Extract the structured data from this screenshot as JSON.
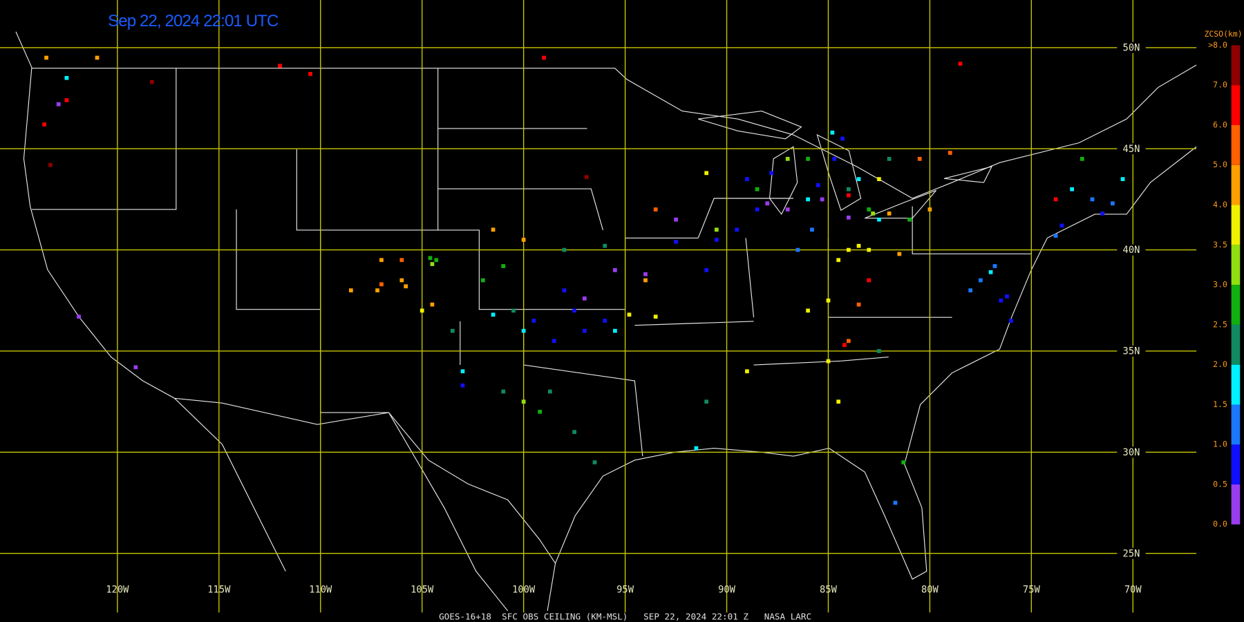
{
  "header": {
    "timestamp": "Sep 22, 2024 22:01 UTC"
  },
  "map": {
    "lon_lines": [
      {
        "value": -120,
        "label": "120W"
      },
      {
        "value": -115,
        "label": "115W"
      },
      {
        "value": -110,
        "label": "110W"
      },
      {
        "value": -105,
        "label": "105W"
      },
      {
        "value": -100,
        "label": "100W"
      },
      {
        "value": -95,
        "label": "95W"
      },
      {
        "value": -90,
        "label": "90W"
      },
      {
        "value": -85,
        "label": "85W"
      },
      {
        "value": -80,
        "label": "80W"
      },
      {
        "value": -75,
        "label": "75W"
      },
      {
        "value": -70,
        "label": "70W"
      }
    ],
    "lat_lines": [
      {
        "value": 50,
        "label": "50N"
      },
      {
        "value": 45,
        "label": "45N"
      },
      {
        "value": 40,
        "label": "40N"
      },
      {
        "value": 35,
        "label": "35N"
      },
      {
        "value": 30,
        "label": "30N"
      },
      {
        "value": 25,
        "label": "25N"
      }
    ],
    "stations": [
      [
        -122.9,
        47.2,
        0.25
      ],
      [
        -92.5,
        41.5,
        0.25
      ],
      [
        -88,
        42.3,
        0.25
      ],
      [
        -87,
        42,
        0.25
      ],
      [
        -95.5,
        39,
        0.25
      ],
      [
        -94,
        38.8,
        0.25
      ],
      [
        -85.3,
        42.5,
        0.25
      ],
      [
        -84,
        41.6,
        0.25
      ],
      [
        -121.9,
        36.7,
        0.25
      ],
      [
        -119.1,
        34.2,
        0.25
      ],
      [
        -97,
        37.6,
        0.25
      ],
      [
        -89,
        43.5,
        0.75
      ],
      [
        -88.5,
        42,
        0.75
      ],
      [
        -89.5,
        41,
        0.75
      ],
      [
        -90.5,
        40.5,
        0.75
      ],
      [
        -87.8,
        43.8,
        0.75
      ],
      [
        -84.7,
        44.5,
        0.75
      ],
      [
        -84.3,
        45.5,
        0.75
      ],
      [
        -98,
        38,
        0.75
      ],
      [
        -97.5,
        37,
        0.75
      ],
      [
        -96,
        36.5,
        0.75
      ],
      [
        -98.5,
        35.5,
        0.75
      ],
      [
        -99.5,
        36.5,
        0.75
      ],
      [
        -97,
        36,
        0.75
      ],
      [
        -76.5,
        37.5,
        0.75
      ],
      [
        -76,
        36.5,
        0.75
      ],
      [
        -76.2,
        37.7,
        0.75
      ],
      [
        -73.5,
        41.2,
        0.75
      ],
      [
        -71.5,
        41.8,
        0.75
      ],
      [
        -91,
        39,
        0.75
      ],
      [
        -92.5,
        40.4,
        0.75
      ],
      [
        -85.5,
        43.2,
        0.75
      ],
      [
        -103,
        33.3,
        0.75
      ],
      [
        -77.5,
        38.5,
        1.25
      ],
      [
        -78,
        38,
        1.25
      ],
      [
        -76.8,
        39.2,
        1.25
      ],
      [
        -73.8,
        40.7,
        1.25
      ],
      [
        -71,
        42.3,
        1.25
      ],
      [
        -72,
        42.5,
        1.25
      ],
      [
        -86.5,
        40,
        1.25
      ],
      [
        -85.8,
        41,
        1.25
      ],
      [
        -81.7,
        27.5,
        1.25
      ],
      [
        -122.5,
        48.5,
        1.75
      ],
      [
        -101.5,
        36.8,
        1.75
      ],
      [
        -100,
        36,
        1.75
      ],
      [
        -82.5,
        41.5,
        1.75
      ],
      [
        -86,
        42.5,
        1.75
      ],
      [
        -83.5,
        43.5,
        1.75
      ],
      [
        -84.8,
        45.8,
        1.75
      ],
      [
        -91.5,
        30.2,
        1.75
      ],
      [
        -73,
        43,
        1.75
      ],
      [
        -70.5,
        43.5,
        1.75
      ],
      [
        -77,
        38.9,
        1.75
      ],
      [
        -103,
        34,
        1.75
      ],
      [
        -95.5,
        36,
        1.75
      ],
      [
        -98,
        40,
        2.25
      ],
      [
        -100.5,
        37,
        2.25
      ],
      [
        -82,
        44.5,
        2.25
      ],
      [
        -84,
        43,
        2.25
      ],
      [
        -96,
        40.2,
        2.25
      ],
      [
        -98.7,
        33,
        2.25
      ],
      [
        -97.5,
        31,
        2.25
      ],
      [
        -96.5,
        29.5,
        2.25
      ],
      [
        -82.5,
        35,
        2.25
      ],
      [
        -91,
        32.5,
        2.25
      ],
      [
        -103.5,
        36,
        2.25
      ],
      [
        -101,
        33,
        2.25
      ],
      [
        -104.6,
        39.6,
        2.75
      ],
      [
        -104.3,
        39.5,
        2.75
      ],
      [
        -102,
        38.5,
        2.75
      ],
      [
        -101,
        39.2,
        2.75
      ],
      [
        -86,
        44.5,
        2.75
      ],
      [
        -83,
        42,
        2.75
      ],
      [
        -81,
        41.5,
        2.75
      ],
      [
        -99.2,
        32,
        2.75
      ],
      [
        -88.5,
        43,
        2.75
      ],
      [
        -72.5,
        44.5,
        2.75
      ],
      [
        -81.3,
        29.5,
        2.75
      ],
      [
        -104.5,
        39.3,
        3.25
      ],
      [
        -82.8,
        41.8,
        3.25
      ],
      [
        -90.5,
        41,
        3.25
      ],
      [
        -100,
        32.5,
        3.25
      ],
      [
        -87,
        44.5,
        3.25
      ],
      [
        -84,
        40,
        3.75
      ],
      [
        -83.5,
        40.2,
        3.75
      ],
      [
        -83,
        40,
        3.75
      ],
      [
        -84.5,
        39.5,
        3.75
      ],
      [
        -85,
        37.5,
        3.75
      ],
      [
        -86,
        37,
        3.75
      ],
      [
        -85,
        34.5,
        3.75
      ],
      [
        -89,
        34,
        3.75
      ],
      [
        -84.5,
        32.5,
        3.75
      ],
      [
        -93.5,
        36.7,
        3.75
      ],
      [
        -94.8,
        36.8,
        3.75
      ],
      [
        -105,
        37,
        3.75
      ],
      [
        -91,
        43.8,
        3.75
      ],
      [
        -82.5,
        43.5,
        3.75
      ],
      [
        -107,
        39.5,
        4.5
      ],
      [
        -106,
        38.5,
        4.5
      ],
      [
        -107.2,
        38,
        4.5
      ],
      [
        -108.5,
        38,
        4.5
      ],
      [
        -105.8,
        38.2,
        4.5
      ],
      [
        -104.5,
        37.3,
        4.5
      ],
      [
        -101.5,
        41,
        4.5
      ],
      [
        -100,
        40.5,
        4.5
      ],
      [
        -82,
        41.8,
        4.5
      ],
      [
        -80,
        42,
        4.5
      ],
      [
        -81.5,
        39.8,
        4.5
      ],
      [
        -94,
        38.5,
        4.5
      ],
      [
        -123.5,
        49.5,
        4.5
      ],
      [
        -121,
        49.5,
        4.5
      ],
      [
        -107,
        38.3,
        5.5
      ],
      [
        -106,
        39.5,
        5.5
      ],
      [
        -93.5,
        42,
        5.5
      ],
      [
        -83.5,
        37.3,
        5.5
      ],
      [
        -84,
        35.5,
        5.5
      ],
      [
        -80.5,
        44.5,
        5.5
      ],
      [
        -79,
        44.8,
        5.5
      ],
      [
        -122.5,
        47.4,
        6.5
      ],
      [
        -123.6,
        46.2,
        6.5
      ],
      [
        -110.5,
        48.7,
        6.5
      ],
      [
        -112,
        49.1,
        6.5
      ],
      [
        -99,
        49.5,
        6.5
      ],
      [
        -78.5,
        49.2,
        6.5
      ],
      [
        -84,
        42.7,
        6.5
      ],
      [
        -84.2,
        35.3,
        6.5
      ],
      [
        -73.8,
        42.5,
        6.5
      ],
      [
        -83,
        38.5,
        6.5
      ],
      [
        -123.3,
        44.2,
        7.5
      ],
      [
        -96.9,
        43.6,
        7.5
      ],
      [
        -118.3,
        48.3,
        7.5
      ]
    ]
  },
  "legend": {
    "title": "ZCSO(km)",
    "bins": [
      {
        "value": 0,
        "label": "0.0"
      },
      {
        "value": 0.5,
        "label": "0.5"
      },
      {
        "value": 1,
        "label": "1.0"
      },
      {
        "value": 1.5,
        "label": "1.5"
      },
      {
        "value": 2,
        "label": "2.0"
      },
      {
        "value": 2.5,
        "label": "2.5"
      },
      {
        "value": 3,
        "label": "3.0"
      },
      {
        "value": 3.5,
        "label": "3.5"
      },
      {
        "value": 4,
        "label": "4.0"
      },
      {
        "value": 5,
        "label": "5.0"
      },
      {
        "value": 6,
        "label": "6.0"
      },
      {
        "value": 7,
        "label": "7.0"
      },
      {
        "value": 8,
        "label": ">8.0"
      }
    ],
    "colors": [
      "#9a3cf0",
      "#1010ff",
      "#1a78ff",
      "#00f0ff",
      "#108a60",
      "#10b010",
      "#90e010",
      "#f0f000",
      "#ffa000",
      "#ff6000",
      "#ff0000",
      "#900000"
    ]
  },
  "footer": "GOES-16+18  SFC OBS CEILING (KM-MSL)   SEP 22, 2024 22:01 Z   NASA LARC"
}
